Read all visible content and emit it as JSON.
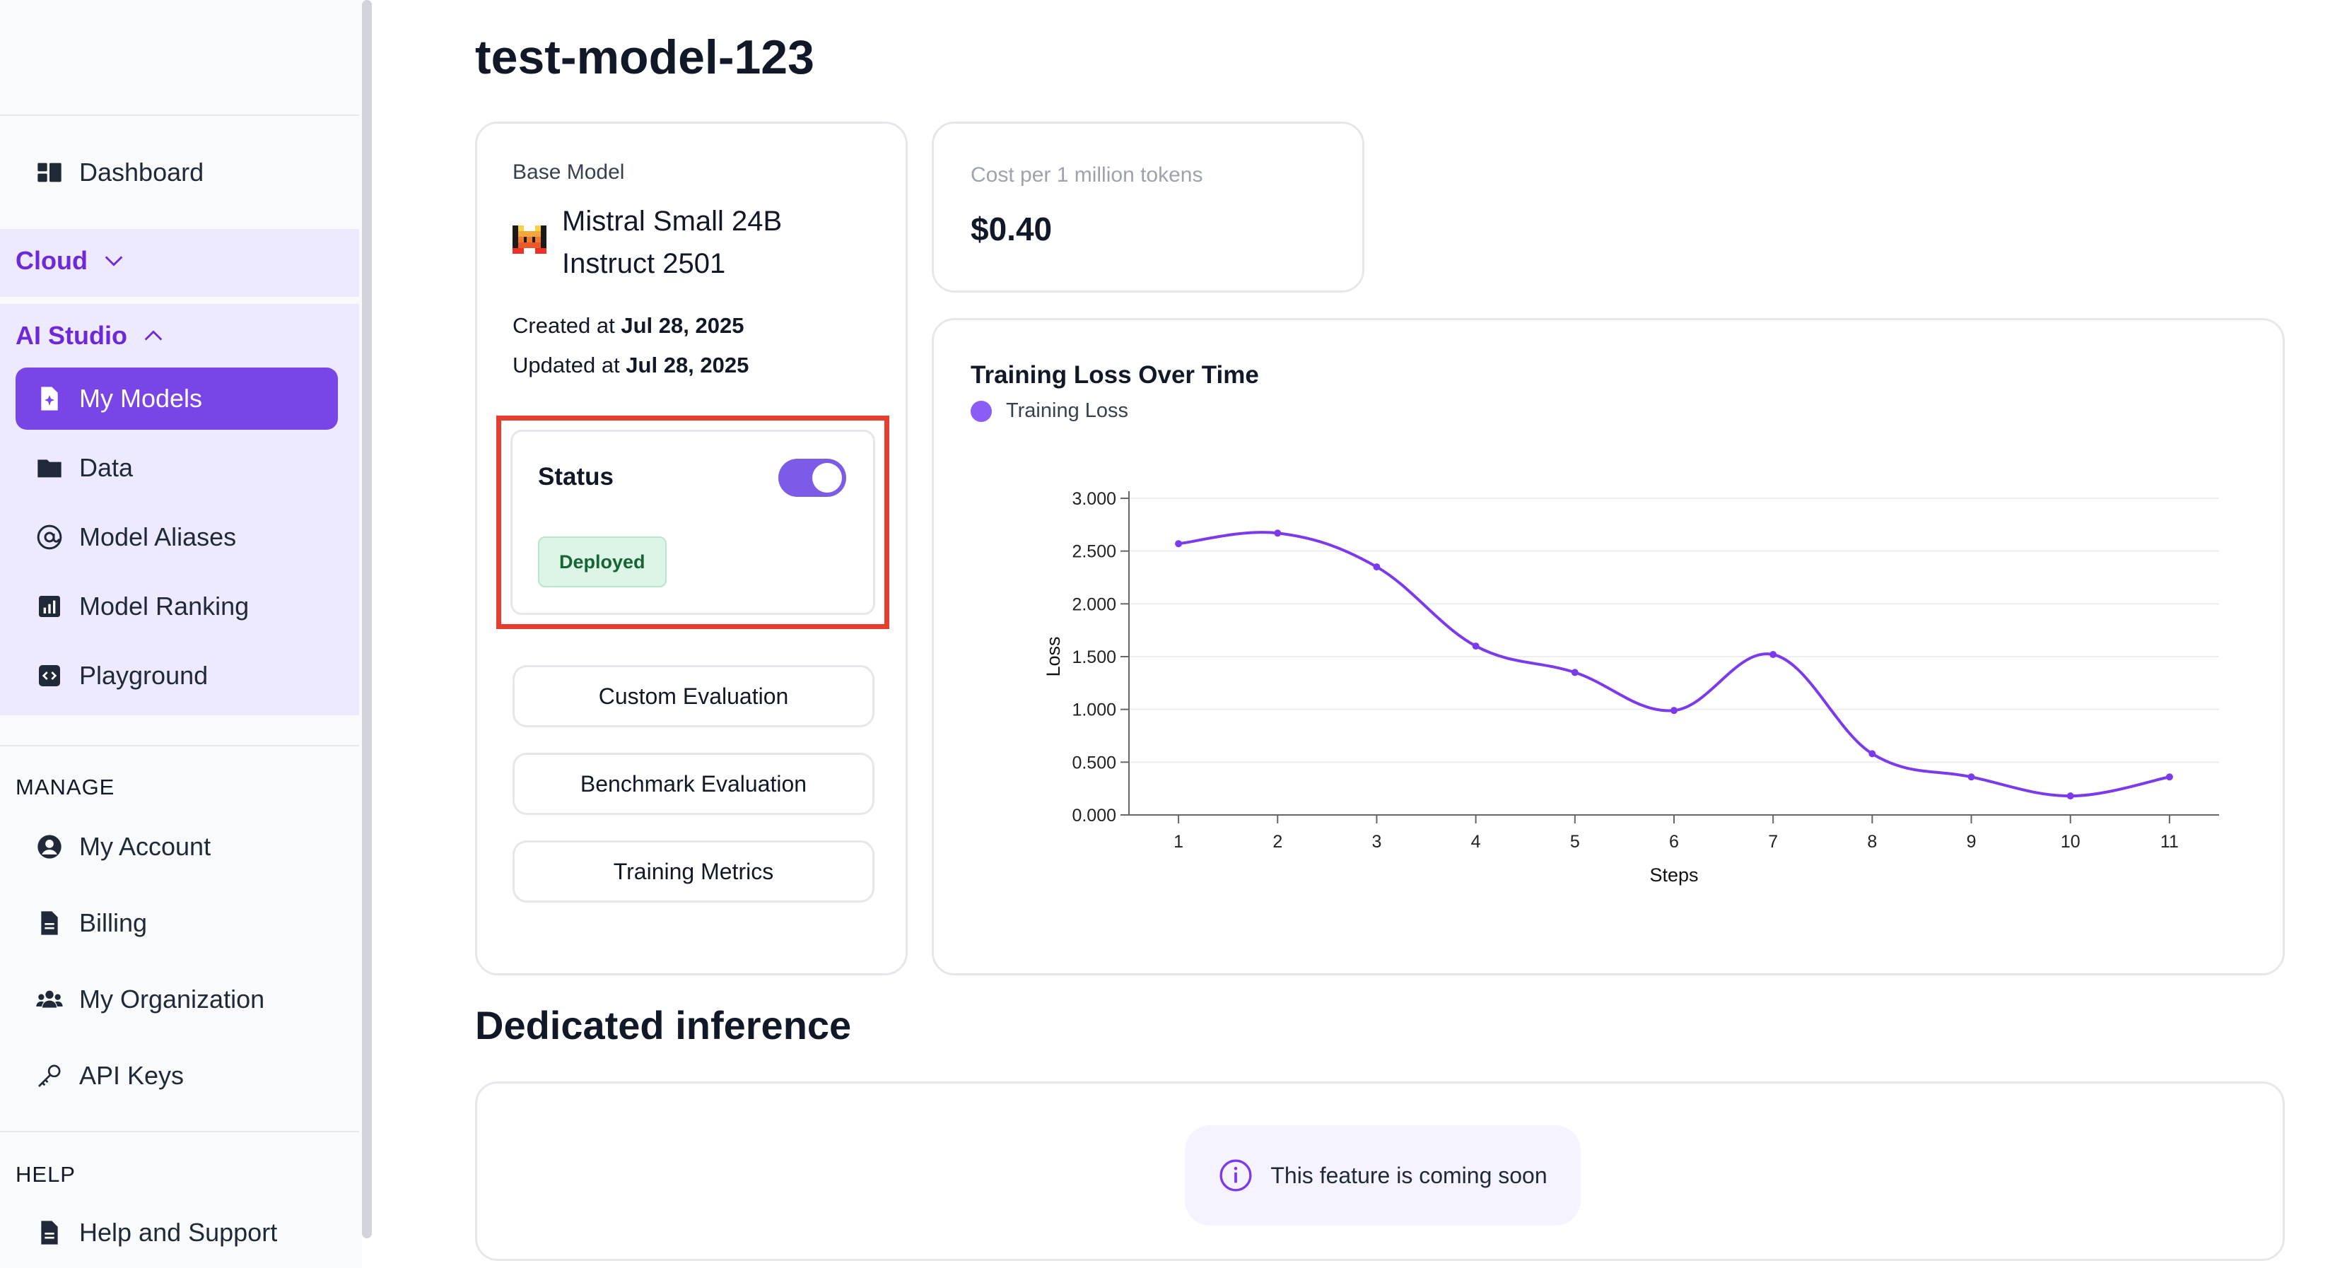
{
  "sidebar": {
    "dashboard": "Dashboard",
    "cloud": "Cloud",
    "ai_studio": "AI Studio",
    "ai_items": [
      "My Models",
      "Data",
      "Model Aliases",
      "Model Ranking",
      "Playground"
    ],
    "manage_label": "MANAGE",
    "manage_items": [
      "My Account",
      "Billing",
      "My Organization",
      "API Keys"
    ],
    "help_label": "HELP",
    "help_items": [
      "Help and Support"
    ]
  },
  "page": {
    "title": "test-model-123"
  },
  "model_card": {
    "base_model_label": "Base Model",
    "model_name_line1": "Mistral Small 24B",
    "model_name_line2": "Instruct 2501",
    "created_prefix": "Created at ",
    "created_date": "Jul 28, 2025",
    "updated_prefix": "Updated at ",
    "updated_date": "Jul 28, 2025",
    "status_label": "Status",
    "status_badge": "Deployed",
    "status_on": true,
    "buttons": [
      "Custom Evaluation",
      "Benchmark Evaluation",
      "Training Metrics"
    ]
  },
  "cost_card": {
    "label": "Cost per 1 million tokens",
    "value": "$0.40"
  },
  "chart_data": {
    "type": "line",
    "title": "Training Loss Over Time",
    "xlabel": "Steps",
    "ylabel": "Loss",
    "x": [
      1,
      2,
      3,
      4,
      5,
      6,
      7,
      8,
      9,
      10,
      11
    ],
    "series": [
      {
        "name": "Training Loss",
        "values": [
          2.57,
          2.67,
          2.35,
          1.6,
          1.35,
          0.99,
          1.52,
          0.58,
          0.36,
          0.18,
          0.36
        ]
      }
    ],
    "ylim": [
      0,
      3
    ],
    "yticks": [
      "0.000",
      "0.500",
      "1.000",
      "1.500",
      "2.000",
      "2.500",
      "3.000"
    ],
    "grid": true,
    "legend": "top-left",
    "color": "#7c3aed"
  },
  "inference": {
    "title": "Dedicated inference",
    "notice": "This feature is coming soon"
  }
}
